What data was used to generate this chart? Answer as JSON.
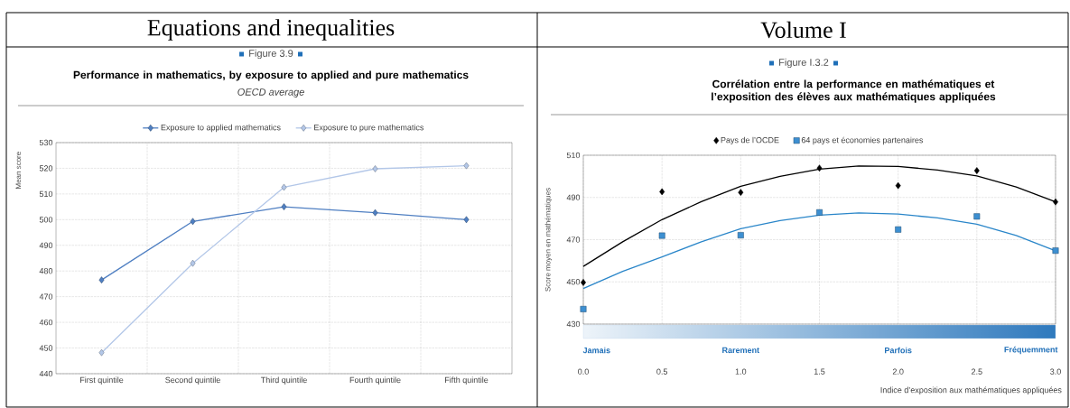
{
  "chart_data": [
    {
      "type": "line",
      "title": "Performance in mathematics, by exposure to applied and pure mathematics",
      "subtitle": "OECD average",
      "annotations": [
        "Equations and inequalities",
        "Figure 3.9"
      ],
      "ylabel": "Mean score",
      "categories": [
        "First quintile",
        "Second quintile",
        "Third quintile",
        "Fourth quintile",
        "Fifth quintile"
      ],
      "series": [
        {
          "name": "Exposure to applied mathematics",
          "color": "#4f7fc2",
          "values": [
            476.5,
            499.3,
            505,
            502.7,
            500
          ]
        },
        {
          "name": "Exposure to pure mathematics",
          "color": "#b3c7e8",
          "values": [
            448.2,
            483,
            512.6,
            519.8,
            521
          ]
        }
      ],
      "ylim": [
        440,
        530
      ],
      "yticks": [
        440,
        450,
        460,
        470,
        480,
        490,
        500,
        510,
        520,
        530
      ],
      "grid": true,
      "legend": "top",
      "marker": "diamond"
    },
    {
      "type": "scatter",
      "title": "Corrélation entre la performance en mathématiques et l’exposition des élèves aux mathématiques appliquées",
      "annotations": [
        "Volume I",
        "Figure I.3.2",
        "Jamais",
        "Rarement",
        "Parfois",
        "Fréquemment"
      ],
      "xlabel": "Indice d’exposition aux mathématiques appliquées",
      "ylabel": "Score moyen en mathématiques",
      "series": [
        {
          "name": "Pays de l’OCDE",
          "color": "#000000",
          "marker": "diamond",
          "x": [
            0,
            0.5,
            1,
            1.5,
            2,
            2.5,
            3
          ],
          "values": [
            449.7,
            492.7,
            492.4,
            503.9,
            495.6,
            502.7,
            487.9
          ]
        },
        {
          "name": "64 pays et économies partenaires",
          "color": "#3d8fd1",
          "marker": "square",
          "x": [
            0,
            0.5,
            1,
            1.5,
            2,
            2.5,
            3
          ],
          "values": [
            437.1,
            471.9,
            472.1,
            482.9,
            474.8,
            481,
            464.8
          ]
        },
        {
          "type": "line",
          "color": "#000000",
          "marker": "none",
          "x": [
            0,
            0.25,
            0.5,
            0.75,
            1,
            1.25,
            1.5,
            1.75,
            2,
            2.25,
            2.5,
            2.75,
            3
          ],
          "values": [
            457.3,
            469,
            479.5,
            488,
            495.3,
            500,
            503.4,
            504.9,
            504.7,
            503,
            500.2,
            495,
            487.9
          ]
        },
        {
          "type": "line",
          "color": "#2a86c9",
          "marker": "none",
          "x": [
            0,
            0.25,
            0.5,
            0.75,
            1,
            1.25,
            1.5,
            1.75,
            2,
            2.25,
            2.5,
            2.75,
            3
          ],
          "values": [
            446.8,
            455,
            461.8,
            469,
            475.2,
            479,
            481.6,
            482.7,
            482.1,
            480.3,
            477.3,
            472,
            464.7
          ]
        }
      ],
      "xlim": [
        0,
        3
      ],
      "xticks": [
        {
          "value": 0,
          "label": "0.0"
        },
        {
          "value": 0.5,
          "label": "0.5"
        },
        {
          "value": 1,
          "label": "1.0"
        },
        {
          "value": 1.5,
          "label": "1.5"
        },
        {
          "value": 2,
          "label": "2.0"
        },
        {
          "value": 2.5,
          "label": "2.5"
        },
        {
          "value": 3,
          "label": "3.0"
        }
      ],
      "ylim": [
        430,
        510
      ],
      "yticks": [
        430,
        450,
        470,
        490,
        510
      ],
      "grid": true,
      "legend": "top"
    }
  ]
}
